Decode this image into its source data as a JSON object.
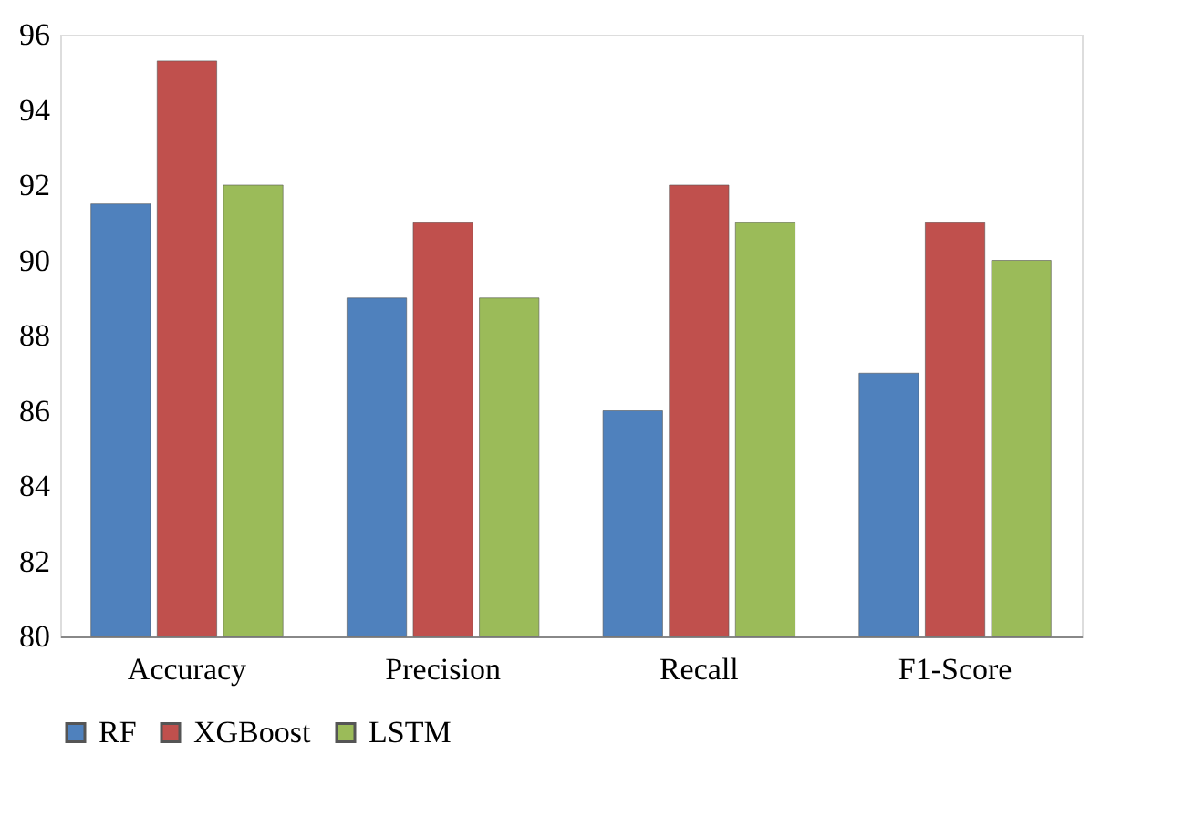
{
  "chart_data": {
    "type": "bar",
    "categories": [
      "Accuracy",
      "Precision",
      "Recall",
      "F1-Score"
    ],
    "series": [
      {
        "name": "RF",
        "color": "#4f81bd",
        "values": [
          91.5,
          89,
          86,
          87
        ]
      },
      {
        "name": "XGBoost",
        "color": "#c0504d",
        "values": [
          95.3,
          91,
          92,
          91
        ]
      },
      {
        "name": "LSTM",
        "color": "#9bbb59",
        "values": [
          92,
          89,
          91,
          90
        ]
      }
    ],
    "ylim": [
      80,
      96
    ],
    "yticks": [
      80,
      82,
      84,
      86,
      88,
      90,
      92,
      94,
      96
    ],
    "grid": false,
    "legend": "bottom"
  }
}
